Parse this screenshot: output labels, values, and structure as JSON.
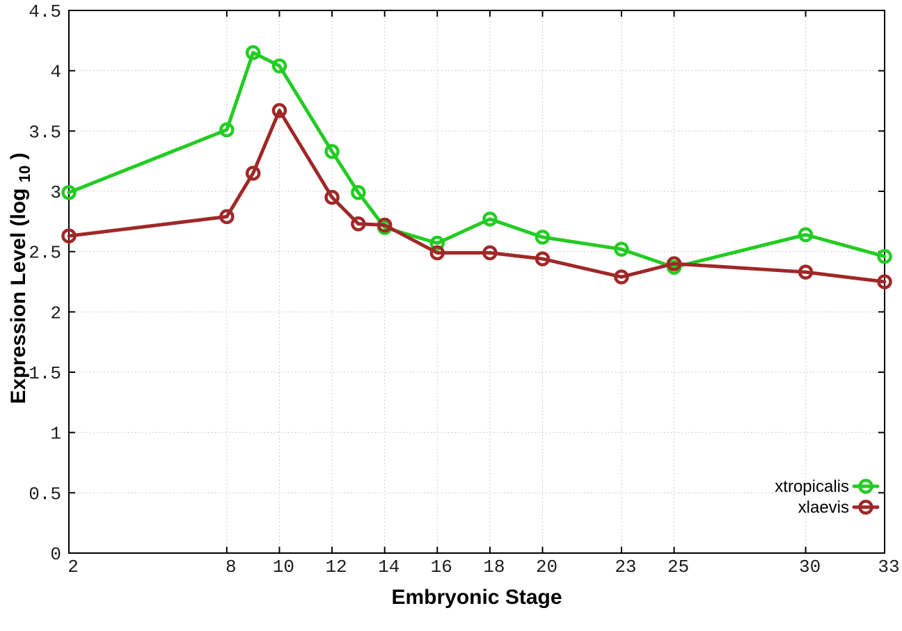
{
  "chart_data": {
    "type": "line",
    "title": "",
    "xlabel": "Embryonic Stage",
    "ylabel": {
      "text": "Expression Level (log",
      "subscript": "10",
      "suffix": ")"
    },
    "xlim": [
      2,
      33
    ],
    "ylim": [
      0,
      4.5
    ],
    "xticks": [
      2,
      8,
      10,
      12,
      14,
      16,
      18,
      20,
      23,
      25,
      30,
      33
    ],
    "yticks": [
      0,
      0.5,
      1,
      1.5,
      2,
      2.5,
      3,
      3.5,
      4,
      4.5
    ],
    "grid": true,
    "legend_position": "bottom-right",
    "x": [
      2,
      8,
      9,
      10,
      12,
      13,
      14,
      16,
      18,
      20,
      23,
      25,
      30,
      33
    ],
    "series": [
      {
        "name": "xtropicalis",
        "color": "#22cc22",
        "marker": "open-circle",
        "values": [
          2.99,
          3.51,
          4.15,
          4.04,
          3.33,
          2.99,
          2.7,
          2.57,
          2.77,
          2.62,
          2.52,
          2.37,
          2.64,
          2.46
        ]
      },
      {
        "name": "xlaevis",
        "color": "#a02828",
        "marker": "open-circle",
        "values": [
          2.63,
          2.79,
          3.15,
          3.67,
          2.95,
          2.73,
          2.72,
          2.49,
          2.49,
          2.44,
          2.29,
          2.4,
          2.33,
          2.25
        ]
      }
    ],
    "colors": {
      "grid": "#bdbdbd",
      "axis": "#000000",
      "tick_label": "#1d1d1d"
    }
  }
}
